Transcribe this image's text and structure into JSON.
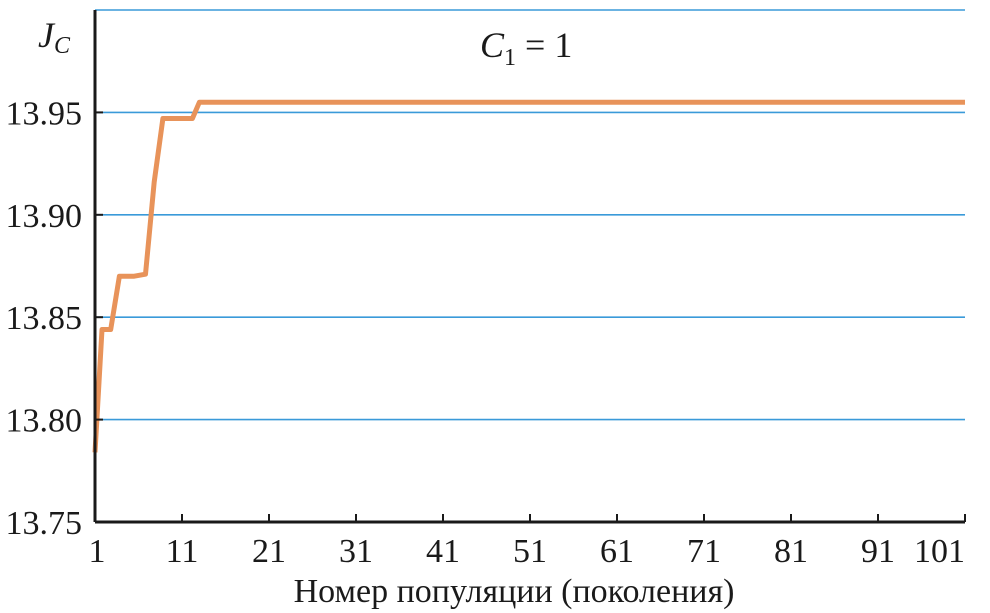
{
  "chart_data": {
    "type": "line",
    "title": "",
    "xlabel": "Номер популяции (поколения)",
    "ylabel": {
      "main": "J",
      "sub": "C"
    },
    "annotation": {
      "main": "C",
      "sub": "1",
      "rest": " = 1"
    },
    "xlim": [
      1,
      101
    ],
    "ylim": [
      13.75,
      14.0
    ],
    "x_ticks": [
      1,
      11,
      21,
      31,
      41,
      51,
      61,
      71,
      81,
      91,
      101
    ],
    "y_ticks": [
      13.75,
      13.8,
      13.85,
      13.9,
      13.95
    ],
    "y_tick_labels": [
      "13.75",
      "13.80",
      "13.85",
      "13.90",
      "13.95"
    ],
    "grid_lines_y": [
      13.8,
      13.85,
      13.9,
      13.95,
      14.0
    ],
    "grid": true,
    "grid_color": "#3a9ad9",
    "series": [
      {
        "color": "#e8935a",
        "x": [
          1,
          1.8,
          2.8,
          3.8,
          4.2,
          5.5,
          6.8,
          7.8,
          8.8,
          10,
          11.2,
          12.2,
          13,
          101
        ],
        "y": [
          13.784,
          13.844,
          13.844,
          13.87,
          13.87,
          13.87,
          13.871,
          13.916,
          13.947,
          13.947,
          13.947,
          13.947,
          13.955,
          13.955
        ]
      }
    ]
  }
}
